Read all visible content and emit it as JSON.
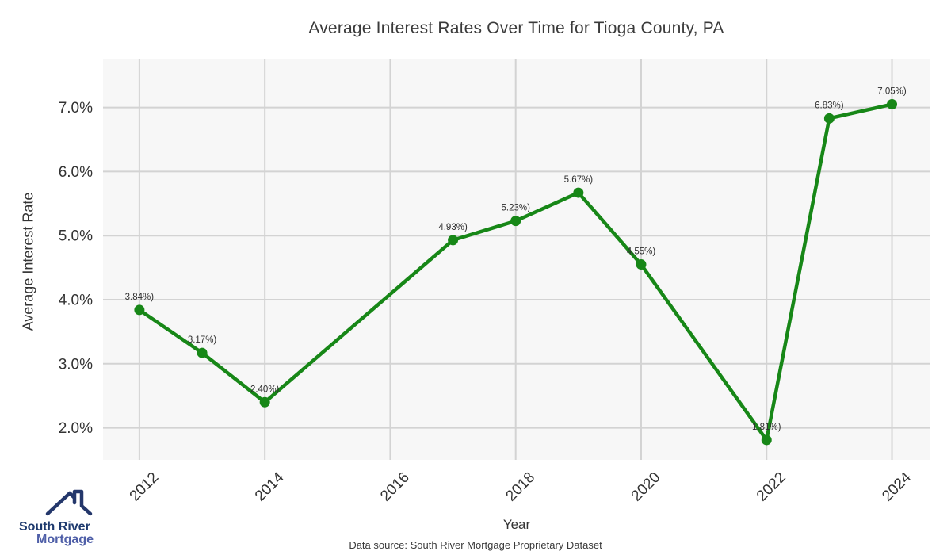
{
  "header": {
    "title": "Average Interest Rates Over Time for Tioga County, PA"
  },
  "chart_data": {
    "type": "line",
    "title": "Average Interest Rates Over Time for Tioga County, PA",
    "xlabel": "Year",
    "ylabel": "Average Interest Rate",
    "x": [
      2012,
      2013,
      2014,
      2017,
      2018,
      2019,
      2020,
      2022,
      2023,
      2024
    ],
    "values": [
      3.84,
      3.17,
      2.4,
      4.93,
      5.23,
      5.67,
      4.55,
      1.81,
      6.83,
      7.05
    ],
    "point_labels": [
      "3.84%)",
      "3.17%)",
      "2.40%)",
      "4.93%)",
      "5.23%)",
      "5.67%)",
      "4.55%)",
      "1.81%)",
      "6.83%)",
      "7.05%)"
    ],
    "x_ticks": [
      2012,
      2014,
      2016,
      2018,
      2020,
      2022,
      2024
    ],
    "x_tick_labels": [
      "2012",
      "2014",
      "2016",
      "2018",
      "2020",
      "2022",
      "2024"
    ],
    "y_ticks": [
      2,
      3,
      4,
      5,
      6,
      7
    ],
    "y_tick_labels": [
      "2.0%",
      "3.0%",
      "4.0%",
      "5.0%",
      "6.0%",
      "7.0%"
    ],
    "xlim": [
      2011.42,
      2024.6
    ],
    "ylim": [
      1.5,
      7.75
    ],
    "grid": true,
    "legend": "none",
    "series_name": "Average Interest Rate",
    "colors": {
      "line": "#178717",
      "marker": "#178717",
      "plot_bg": "#f7f7f7",
      "grid": "#d3d3d3",
      "tick_text": "#333333",
      "label_text": "#2e2e2e"
    }
  },
  "footer": {
    "source": "Data source: South River Mortgage Proprietary Dataset"
  },
  "logo": {
    "line1": "South River",
    "line2": "Mortgage",
    "color_primary": "#1e3a6e",
    "color_secondary": "#4f5fa8"
  }
}
